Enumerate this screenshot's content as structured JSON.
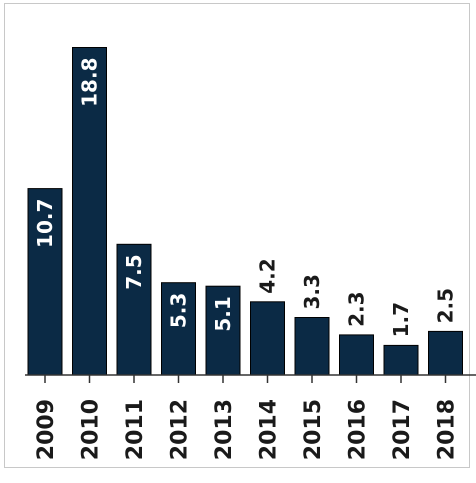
{
  "chart_data": {
    "type": "bar",
    "categories": [
      "2009",
      "2010",
      "2011",
      "2012",
      "2013",
      "2014",
      "2015",
      "2016",
      "2017",
      "2018"
    ],
    "values": [
      10.7,
      18.8,
      7.5,
      5.3,
      5.1,
      4.2,
      3.3,
      2.3,
      1.7,
      2.5
    ],
    "value_labels": [
      "10.7",
      "18.8",
      "7.5",
      "5.3",
      "5.1",
      "4.2",
      "3.3",
      "2.3",
      "1.7",
      "2.5"
    ],
    "title": "",
    "xlabel": "",
    "ylabel": "",
    "ylim": [
      0,
      20
    ],
    "grid": false,
    "legend": "none",
    "bar_color": "#0b2a45",
    "label_inside_color": "#ffffff",
    "label_outside_color": "#1a1a1a",
    "axis_color": "#333333"
  }
}
